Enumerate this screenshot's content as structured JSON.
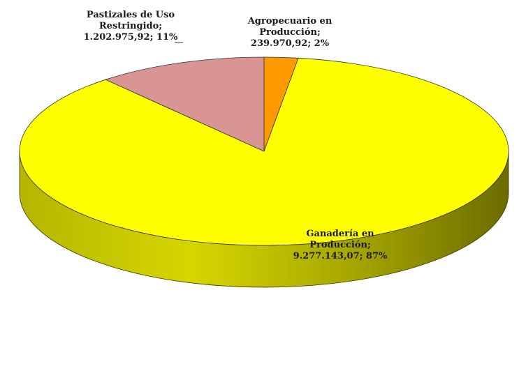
{
  "chart_data": {
    "type": "pie",
    "style": "3d",
    "slices": [
      {
        "name": "Agropecuario en Producción",
        "value": 239970.92,
        "percent": 2,
        "label_lines": [
          "Agropecuario en",
          "Producción;",
          "239.970,92; 2%"
        ],
        "color": "#ff9900"
      },
      {
        "name": "Ganadería en Producción",
        "value": 9277143.07,
        "percent": 87,
        "label_lines": [
          "Ganadería en",
          "Producción;",
          "9.277.143,07; 87%"
        ],
        "color": "#ffff00"
      },
      {
        "name": "Pastizales de Uso Restringido",
        "value": 1202975.92,
        "percent": 11,
        "label_lines": [
          "Pastizales de Uso",
          "Restringido;",
          "1.202.975,92; 11%"
        ],
        "color": "#d99594"
      }
    ],
    "title": "",
    "legend": "none"
  }
}
